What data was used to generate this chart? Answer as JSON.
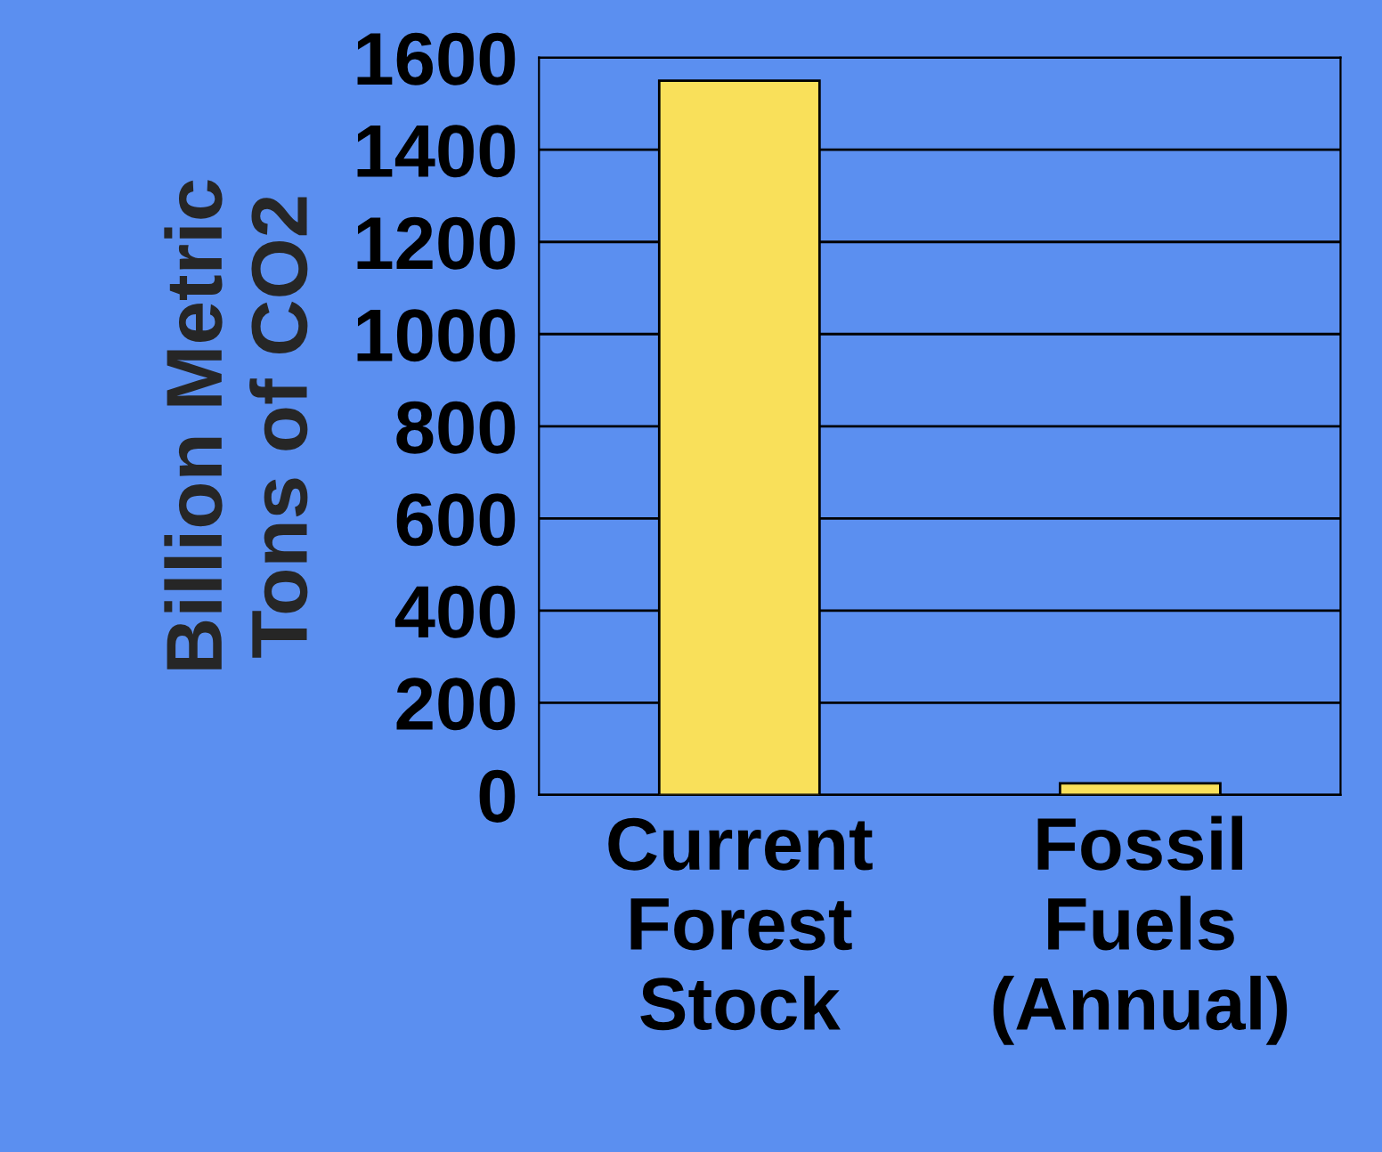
{
  "chart_data": {
    "type": "bar",
    "ylabel": "Billion Metric\nTons of CO2",
    "categories": [
      "Current\nForest\nStock",
      "Fossil\nFuels\n(Annual)"
    ],
    "values": [
      1550,
      25
    ],
    "color": "#f9e05a",
    "ylim": [
      0,
      1600
    ],
    "yticks": [
      0,
      200,
      400,
      600,
      800,
      1000,
      1200,
      1400,
      1600
    ],
    "grid": "y"
  }
}
